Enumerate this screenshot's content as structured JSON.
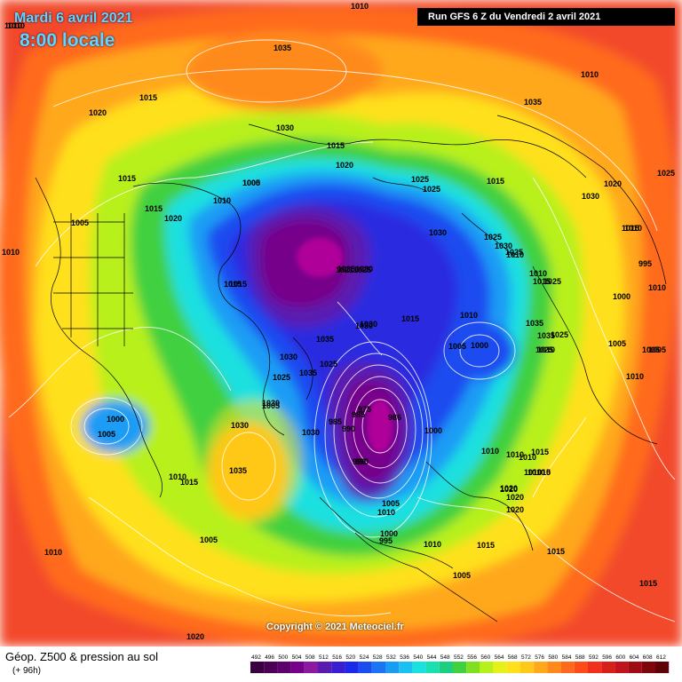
{
  "header": {
    "date": "Mardi 6 avril 2021",
    "time": "8:00 locale",
    "run": "Run GFS 6 Z du Vendredi 2 avril 2021"
  },
  "copyright": "Copyright © 2021 Meteociel.fr",
  "legend": {
    "title": "Géop. Z500 & pression au sol",
    "subtitle": "(+ 96h)",
    "scale_values": [
      "492",
      "496",
      "500",
      "504",
      "508",
      "512",
      "516",
      "520",
      "524",
      "528",
      "532",
      "536",
      "540",
      "544",
      "548",
      "552",
      "556",
      "560",
      "564",
      "568",
      "572",
      "576",
      "580",
      "584",
      "588",
      "592",
      "596",
      "600",
      "604",
      "608",
      "612"
    ],
    "scale_colors": [
      "#3a0040",
      "#4a0055",
      "#5e006e",
      "#76008a",
      "#8c1aa0",
      "#5a1ab0",
      "#3a1ed0",
      "#1a2ae6",
      "#1a4cf0",
      "#1a74f5",
      "#1a9cf5",
      "#1ac0f0",
      "#1ae0e0",
      "#1ae0b0",
      "#1ad080",
      "#40d040",
      "#80e020",
      "#b8f01a",
      "#e8f01a",
      "#ffe01a",
      "#ffc81a",
      "#ffa81a",
      "#ff8a1a",
      "#ff6a1a",
      "#ff4a1a",
      "#f0301a",
      "#d8201a",
      "#c0141a",
      "#a00c14",
      "#80060e",
      "#600008"
    ]
  },
  "map": {
    "colors": {
      "background": "#f24a2a",
      "outer_orange": "#ff8a1a",
      "orange": "#ffa81a",
      "yellow": "#ffe01a",
      "light_green": "#b8f01a",
      "green": "#40d040",
      "cyan": "#1ae0e0",
      "light_blue": "#1a9cf5",
      "blue": "#1a4cf0",
      "deep_blue": "#2a2ae0",
      "violet": "#5a1ab0",
      "purple": "#76008a",
      "magenta": "#b0009a"
    },
    "pressure_labels": [
      "1010",
      "1010",
      "1035",
      "1015",
      "1020",
      "1030",
      "1015",
      "1020",
      "1015",
      "1005",
      "1010",
      "1000",
      "1015",
      "1020",
      "1005",
      "1010",
      "1010",
      "1015",
      "1035",
      "1030",
      "1030",
      "1035",
      "1025",
      "1035",
      "1030",
      "1030",
      "1030",
      "1000",
      "1005",
      "1010",
      "1015",
      "1005",
      "1035",
      "1005",
      "1015",
      "1015",
      "1021",
      "1025",
      "1030",
      "1030",
      "1025",
      "1015",
      "1030",
      "1025",
      "1025",
      "1015",
      "1010",
      "1005",
      "1000",
      "975",
      "985",
      "985",
      "990",
      "986",
      "990",
      "1000",
      "990",
      "1005",
      "1010",
      "1000",
      "995",
      "1010",
      "1015",
      "1005",
      "1010",
      "1010",
      "1010",
      "1010",
      "1015",
      "1015",
      "1010",
      "1010",
      "1025",
      "1035",
      "1035",
      "1020",
      "1020",
      "1025",
      "1025",
      "1030",
      "1025",
      "1025",
      "1010",
      "1015",
      "1020",
      "1020",
      "1010",
      "995",
      "1000",
      "1005",
      "1010",
      "1005",
      "1005",
      "1010",
      "1015",
      "1010",
      "1010",
      "1020",
      "1025",
      "1035",
      "1030",
      "1010",
      "1015",
      "1010",
      "1020"
    ]
  }
}
